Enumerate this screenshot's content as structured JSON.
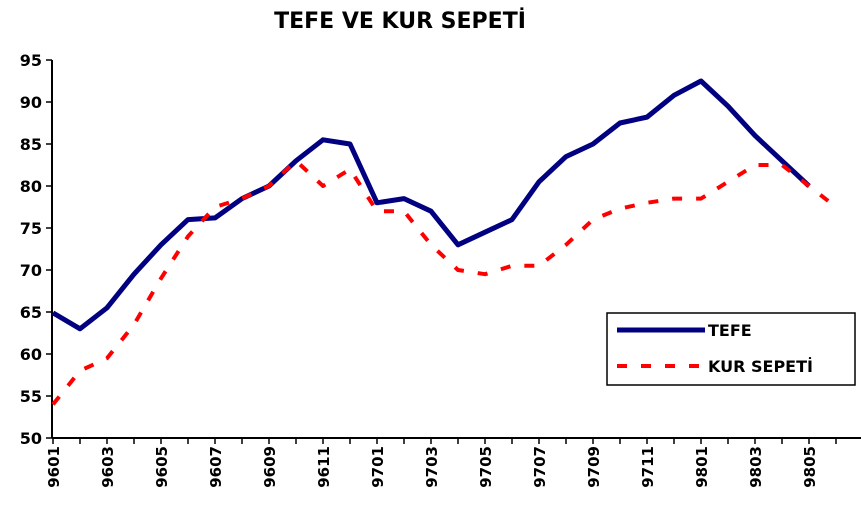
{
  "chart_data": {
    "type": "line",
    "title": "TEFE VE KUR SEPETİ",
    "categories": [
      "9601",
      null,
      "9603",
      null,
      "9605",
      null,
      "9607",
      null,
      "9609",
      null,
      "9611",
      null,
      "9701",
      null,
      "9703",
      null,
      "9705",
      null,
      "9707",
      null,
      "9709",
      null,
      "9711",
      null,
      "9801",
      null,
      "9803",
      null,
      "9805",
      null
    ],
    "series": [
      {
        "name": "TEFE",
        "color": "#000080",
        "dash": false,
        "values": [
          64.9,
          63,
          65.5,
          69.5,
          73,
          76,
          76.2,
          78.5,
          80,
          83,
          85.5,
          85,
          78,
          78.5,
          77,
          73,
          74.5,
          76,
          80.5,
          83.5,
          85,
          87.5,
          88.2,
          90.8,
          92.5,
          89.5,
          86,
          83,
          80,
          null
        ]
      },
      {
        "name": "KUR SEPETİ",
        "color": "#ff0000",
        "dash": true,
        "values": [
          54,
          58,
          59.5,
          63.5,
          69,
          74,
          77.5,
          78.5,
          80,
          83,
          80,
          82,
          77,
          77,
          73,
          70,
          69.5,
          70.5,
          70.5,
          73,
          76,
          77.3,
          78,
          78.5,
          78.5,
          80.5,
          82.5,
          82.5,
          80,
          77.5
        ]
      }
    ],
    "ylim": [
      50,
      95
    ],
    "yticks": [
      50,
      55,
      60,
      65,
      70,
      75,
      80,
      85,
      90,
      95
    ],
    "grid": false,
    "legend": "right"
  }
}
